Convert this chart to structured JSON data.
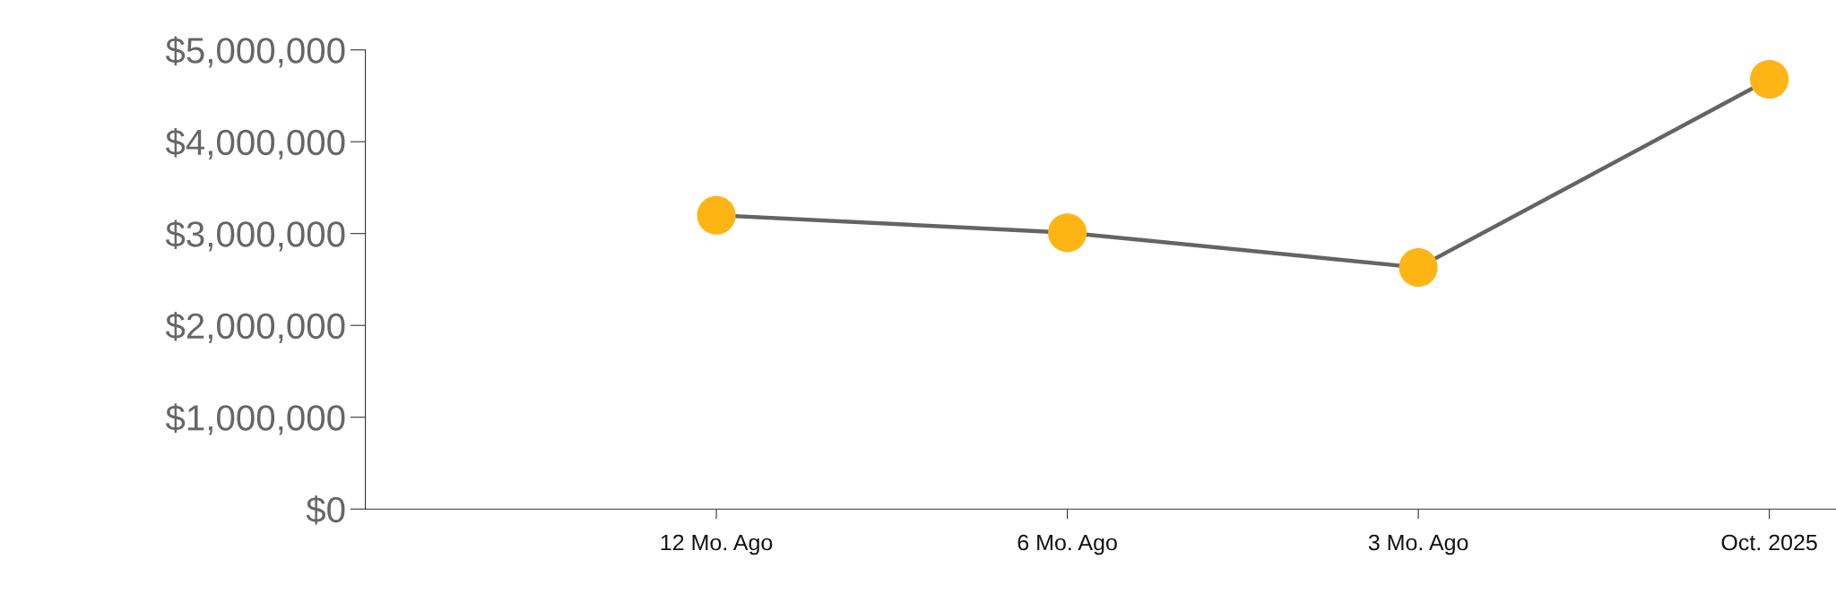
{
  "chart_data": {
    "type": "line",
    "categories": [
      "12 Mo. Ago",
      "6 Mo. Ago",
      "3 Mo. Ago",
      "Oct. 2025"
    ],
    "series": [
      {
        "color": "#646464",
        "colors": [
          "#fdb515",
          "#fdb515",
          "#fdb515",
          "#fdb515"
        ],
        "values": [
          3200000,
          3010000,
          2630000,
          4680000
        ]
      }
    ],
    "marker": "circle",
    "line_style": "solid",
    "ylim": [
      0,
      5000000
    ],
    "yticks": [
      {
        "value": 0,
        "label": "$0"
      },
      {
        "value": 1000000,
        "label": "$1,000,000"
      },
      {
        "value": 2000000,
        "label": "$2,000,000"
      },
      {
        "value": 3000000,
        "label": "$3,000,000"
      },
      {
        "value": 4000000,
        "label": "$4,000,000"
      },
      {
        "value": 5000000,
        "label": "$5,000,000"
      }
    ],
    "grid": false,
    "legend": false
  }
}
